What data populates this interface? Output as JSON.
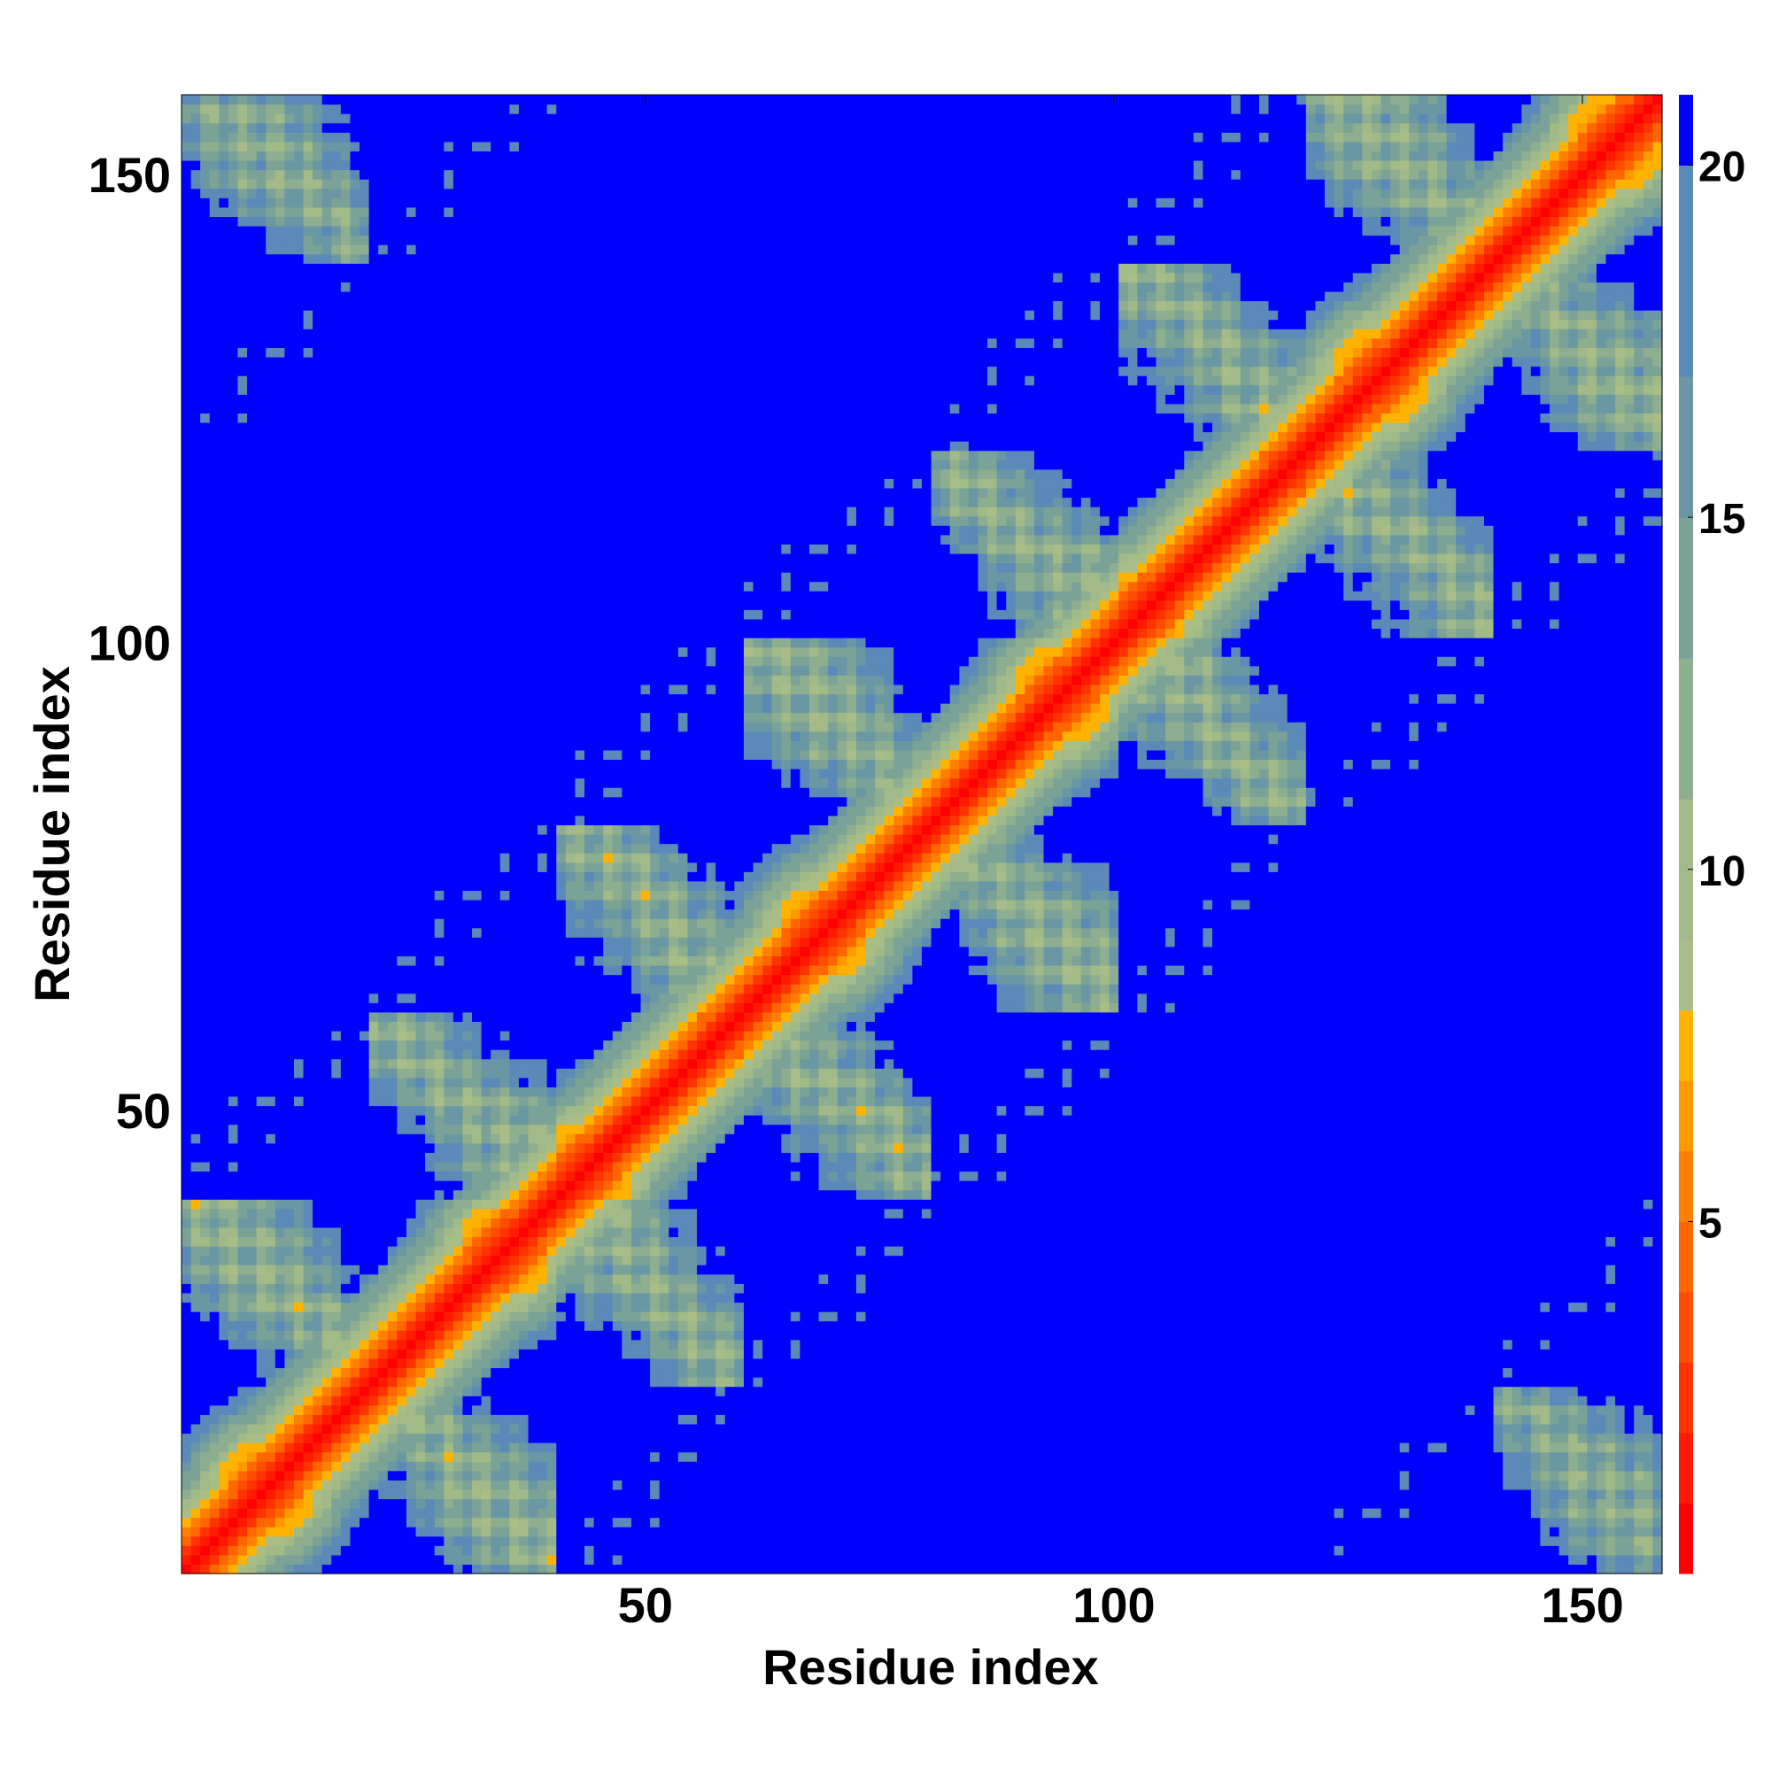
{
  "chart_data": {
    "type": "heatmap",
    "title": "",
    "xlabel": "Residue index",
    "ylabel": "Residue index",
    "x_range": [
      1,
      158
    ],
    "y_range": [
      1,
      158
    ],
    "xticks": [
      50,
      100,
      150
    ],
    "yticks": [
      50,
      100,
      150
    ],
    "colorbar": {
      "range": [
        0,
        21
      ],
      "ticks": [
        5,
        10,
        15,
        20
      ],
      "levels": [
        {
          "max": 1,
          "color": "#ff0000"
        },
        {
          "max": 2,
          "color": "#ff1a00"
        },
        {
          "max": 3,
          "color": "#ff3300"
        },
        {
          "max": 4,
          "color": "#ff4d00"
        },
        {
          "max": 5,
          "color": "#ff6600"
        },
        {
          "max": 6,
          "color": "#ff8000"
        },
        {
          "max": 7,
          "color": "#ff9900"
        },
        {
          "max": 8,
          "color": "#ffb300"
        },
        {
          "max": 9,
          "color": "#a9bd86"
        },
        {
          "max": 11,
          "color": "#a2ba88"
        },
        {
          "max": 13,
          "color": "#8eae90"
        },
        {
          "max": 15,
          "color": "#7ba296"
        },
        {
          "max": 17,
          "color": "#6a97a4"
        },
        {
          "max": 20,
          "color": "#5b89b8"
        },
        {
          "max": 21,
          "color": "#0000ff"
        }
      ]
    },
    "matrix_description": "Residue-residue distance matrix (Angstrom), symmetric; diagonal near 0, values above 20 saturate blue",
    "grid": false,
    "legend": "colorbar right"
  }
}
